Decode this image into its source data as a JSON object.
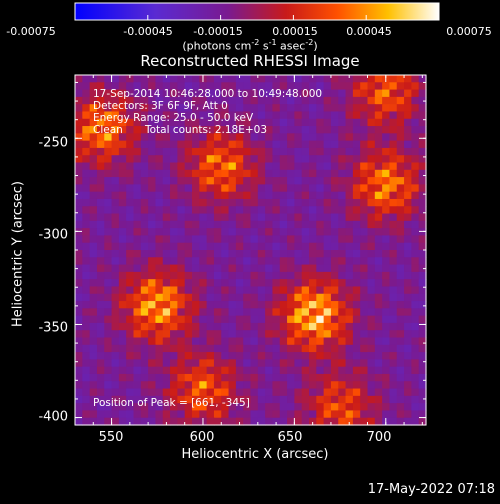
{
  "colorbar": {
    "ticks": [
      "-0.00075",
      "-0.00045",
      "-0.00015",
      "0.00015",
      "0.00045",
      "0.00075"
    ],
    "range": [
      -0.00075,
      0.00075
    ],
    "units_main": "(photons cm",
    "units_exp1": "-2",
    "units_mid": " s",
    "units_exp2": "-1",
    "units_mid2": " asec",
    "units_exp3": "-2",
    "units_end": ")"
  },
  "title": "Reconstructed RHESSI Image",
  "info": {
    "time": "17-Sep-2014 10:46:28.000 to 10:49:48.000",
    "detectors": "Detectors: 3F 6F 9F, Att 0",
    "energy": "Energy Range: 25.0 - 50.0 keV",
    "algorithm": "Clean",
    "counts": "Total counts: 2.18E+03",
    "peak": "Position of Peak = [661, -345]"
  },
  "axes": {
    "xlabel": "Heliocentric X (arcsec)",
    "ylabel": "Heliocentric Y (arcsec)",
    "xticks": [
      "550",
      "600",
      "650",
      "700"
    ],
    "yticks": [
      "-250",
      "-300",
      "-350",
      "-400"
    ],
    "xlim": [
      530,
      722
    ],
    "ylim": [
      -404,
      -216
    ]
  },
  "footer": "17-May-2022 07:18",
  "colors": {
    "plot_bg": "#3a1f8c",
    "axis": "#ffffff"
  },
  "chart_data": {
    "type": "heatmap",
    "title": "Reconstructed RHESSI Image",
    "xlabel": "Heliocentric X (arcsec)",
    "ylabel": "Heliocentric Y (arcsec)",
    "xlim": [
      530,
      722
    ],
    "ylim": [
      -404,
      -216
    ],
    "zlim": [
      -0.00075,
      0.00075
    ],
    "colormap": "blue-purple-red-yellow-white",
    "sources": [
      {
        "x": 661,
        "y": -345,
        "peak": 0.00075
      },
      {
        "x": 575,
        "y": -340,
        "peak": 0.00065
      },
      {
        "x": 610,
        "y": -265,
        "peak": 0.0005
      },
      {
        "x": 545,
        "y": -245,
        "peak": 0.00055
      },
      {
        "x": 700,
        "y": -275,
        "peak": 0.00055
      },
      {
        "x": 600,
        "y": -385,
        "peak": 0.00045
      },
      {
        "x": 675,
        "y": -395,
        "peak": 0.0004
      },
      {
        "x": 700,
        "y": -225,
        "peak": 0.00045
      }
    ]
  }
}
